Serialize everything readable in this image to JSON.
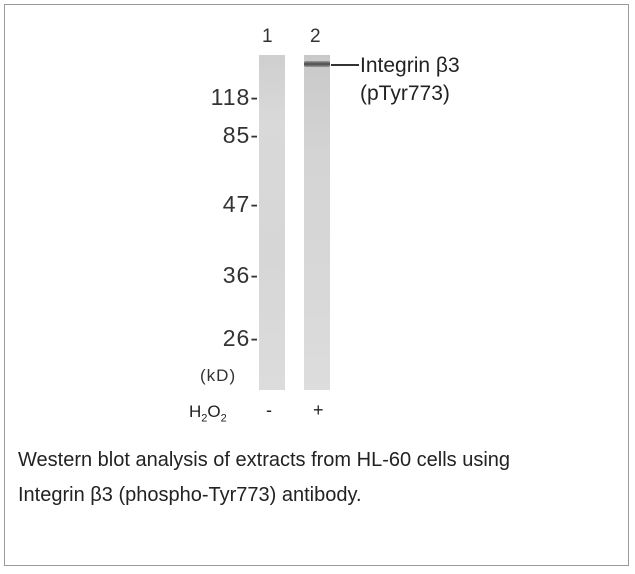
{
  "lanes": [
    {
      "number": "1",
      "treatment_sign": "-"
    },
    {
      "number": "2",
      "treatment_sign": "+"
    }
  ],
  "markers": [
    {
      "label": "118-",
      "kd": 118
    },
    {
      "label": "85-",
      "kd": 85
    },
    {
      "label": "47-",
      "kd": 47
    },
    {
      "label": "36-",
      "kd": 36
    },
    {
      "label": "26-",
      "kd": 26
    }
  ],
  "unit_label": "(kD)",
  "band_label": {
    "line1": "Integrin β3",
    "line2": "(pTyr773)"
  },
  "treatment": {
    "base": "H",
    "sub1": "2",
    "mid": "O",
    "sub2": "2"
  },
  "caption": {
    "line1": "Western blot analysis of extracts from HL-60 cells using",
    "line2": "Integrin β3 (phospho-Tyr773) antibody."
  }
}
